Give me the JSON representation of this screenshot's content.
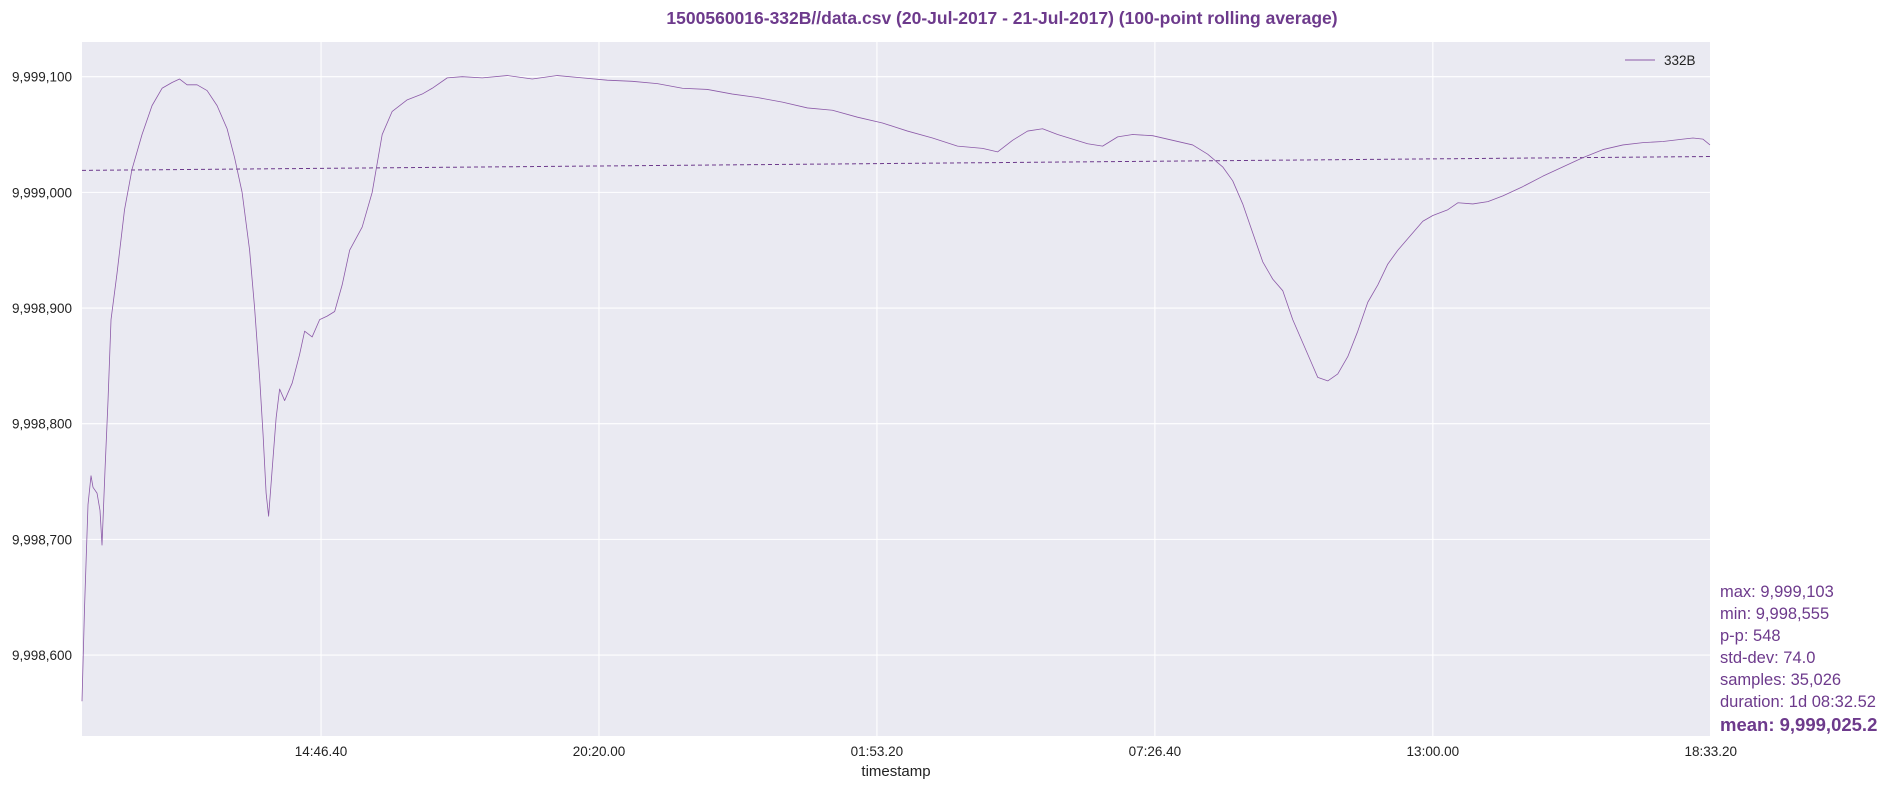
{
  "colors": {
    "accent": "#6d3a8c",
    "plot_bg": "#eaeaf2",
    "grid": "#ffffff",
    "series": "#8c5aa8"
  },
  "chart_data": {
    "type": "line",
    "title": "1500560016-332B//data.csv (20-Jul-2017 - 21-Jul-2017) (100-point rolling average)",
    "xlabel": "timestamp",
    "ylabel": "",
    "x_ticks": [
      "14:46.40",
      "20:20.00",
      "01:53.20",
      "07:26.40",
      "13:00.00",
      "18:33.20"
    ],
    "y_ticks": [
      "9,998,600",
      "9,998,700",
      "9,998,800",
      "9,998,900",
      "9,999,000",
      "9,999,100"
    ],
    "y_tick_values": [
      9998600,
      9998700,
      9998800,
      9998900,
      9999000,
      9999100
    ],
    "ylim": [
      9998530,
      9999130
    ],
    "x_unit": "hours since plot start (10:00 on 20-Jul-2017)",
    "xlim": [
      0,
      32.54
    ],
    "grid": true,
    "legend_position": "top-right",
    "series": [
      {
        "name": "332B",
        "points": [
          [
            0.0,
            9998560
          ],
          [
            0.05,
            9998640
          ],
          [
            0.12,
            9998730
          ],
          [
            0.18,
            9998755
          ],
          [
            0.22,
            9998745
          ],
          [
            0.3,
            9998740
          ],
          [
            0.36,
            9998725
          ],
          [
            0.4,
            9998695
          ],
          [
            0.46,
            9998760
          ],
          [
            0.52,
            9998820
          ],
          [
            0.58,
            9998890
          ],
          [
            0.7,
            9998930
          ],
          [
            0.85,
            9998985
          ],
          [
            1.0,
            9999020
          ],
          [
            1.2,
            9999050
          ],
          [
            1.4,
            9999075
          ],
          [
            1.6,
            9999090
          ],
          [
            1.8,
            9999095
          ],
          [
            1.95,
            9999098
          ],
          [
            2.1,
            9999093
          ],
          [
            2.3,
            9999093
          ],
          [
            2.5,
            9999088
          ],
          [
            2.7,
            9999075
          ],
          [
            2.9,
            9999055
          ],
          [
            3.05,
            9999030
          ],
          [
            3.2,
            9999000
          ],
          [
            3.35,
            9998950
          ],
          [
            3.45,
            9998900
          ],
          [
            3.55,
            9998840
          ],
          [
            3.62,
            9998790
          ],
          [
            3.68,
            9998740
          ],
          [
            3.73,
            9998720
          ],
          [
            3.8,
            9998760
          ],
          [
            3.88,
            9998805
          ],
          [
            3.95,
            9998830
          ],
          [
            4.05,
            9998820
          ],
          [
            4.2,
            9998835
          ],
          [
            4.35,
            9998860
          ],
          [
            4.45,
            9998880
          ],
          [
            4.6,
            9998875
          ],
          [
            4.75,
            9998890
          ],
          [
            4.9,
            9998893
          ],
          [
            5.05,
            9998897
          ],
          [
            5.2,
            9998920
          ],
          [
            5.35,
            9998950
          ],
          [
            5.6,
            9998970
          ],
          [
            5.8,
            9999000
          ],
          [
            6.0,
            9999050
          ],
          [
            6.2,
            9999070
          ],
          [
            6.5,
            9999080
          ],
          [
            6.8,
            9999085
          ],
          [
            7.0,
            9999090
          ],
          [
            7.3,
            9999099
          ],
          [
            7.6,
            9999100
          ],
          [
            8.0,
            9999099
          ],
          [
            8.5,
            9999101
          ],
          [
            9.0,
            9999098
          ],
          [
            9.5,
            9999101
          ],
          [
            10.0,
            9999099
          ],
          [
            10.5,
            9999097
          ],
          [
            11.0,
            9999096
          ],
          [
            11.5,
            9999094
          ],
          [
            12.0,
            9999090
          ],
          [
            12.5,
            9999089
          ],
          [
            13.0,
            9999085
          ],
          [
            13.5,
            9999082
          ],
          [
            14.0,
            9999078
          ],
          [
            14.5,
            9999073
          ],
          [
            15.0,
            9999071
          ],
          [
            15.5,
            9999065
          ],
          [
            16.0,
            9999060
          ],
          [
            16.5,
            9999053
          ],
          [
            17.0,
            9999047
          ],
          [
            17.5,
            9999040
          ],
          [
            18.0,
            9999038
          ],
          [
            18.3,
            9999035
          ],
          [
            18.6,
            9999045
          ],
          [
            18.9,
            9999053
          ],
          [
            19.2,
            9999055
          ],
          [
            19.5,
            9999050
          ],
          [
            19.8,
            9999046
          ],
          [
            20.1,
            9999042
          ],
          [
            20.4,
            9999040
          ],
          [
            20.7,
            9999048
          ],
          [
            21.0,
            9999050
          ],
          [
            21.4,
            9999049
          ],
          [
            21.8,
            9999045
          ],
          [
            22.2,
            9999041
          ],
          [
            22.5,
            9999033
          ],
          [
            22.8,
            9999022
          ],
          [
            23.0,
            9999010
          ],
          [
            23.2,
            9998990
          ],
          [
            23.4,
            9998965
          ],
          [
            23.6,
            9998940
          ],
          [
            23.8,
            9998925
          ],
          [
            24.0,
            9998915
          ],
          [
            24.2,
            9998890
          ],
          [
            24.4,
            9998870
          ],
          [
            24.6,
            9998850
          ],
          [
            24.7,
            9998840
          ],
          [
            24.9,
            9998837
          ],
          [
            25.1,
            9998843
          ],
          [
            25.3,
            9998858
          ],
          [
            25.5,
            9998880
          ],
          [
            25.7,
            9998905
          ],
          [
            25.9,
            9998920
          ],
          [
            26.1,
            9998938
          ],
          [
            26.3,
            9998950
          ],
          [
            26.5,
            9998960
          ],
          [
            26.8,
            9998975
          ],
          [
            27.0,
            9998980
          ],
          [
            27.3,
            9998985
          ],
          [
            27.5,
            9998991
          ],
          [
            27.8,
            9998990
          ],
          [
            28.1,
            9998992
          ],
          [
            28.4,
            9998997
          ],
          [
            28.8,
            9999005
          ],
          [
            29.2,
            9999014
          ],
          [
            29.6,
            9999022
          ],
          [
            30.0,
            9999030
          ],
          [
            30.4,
            9999037
          ],
          [
            30.8,
            9999041
          ],
          [
            31.2,
            9999043
          ],
          [
            31.6,
            9999044
          ],
          [
            32.0,
            9999046
          ],
          [
            32.2,
            9999047
          ],
          [
            32.4,
            9999046
          ],
          [
            32.54,
            9999041
          ]
        ]
      }
    ],
    "mean_line": {
      "y_start": 9999019,
      "y_end": 9999031,
      "style": "dashed"
    },
    "stats": {
      "max": "max: 9,999,103",
      "min": "min: 9,998,555",
      "pp": "p-p: 548",
      "std": "std-dev: 74.0",
      "samples": "samples: 35,026",
      "duration": "duration: 1d 08:32.52",
      "mean": "mean: 9,999,025.2"
    }
  }
}
